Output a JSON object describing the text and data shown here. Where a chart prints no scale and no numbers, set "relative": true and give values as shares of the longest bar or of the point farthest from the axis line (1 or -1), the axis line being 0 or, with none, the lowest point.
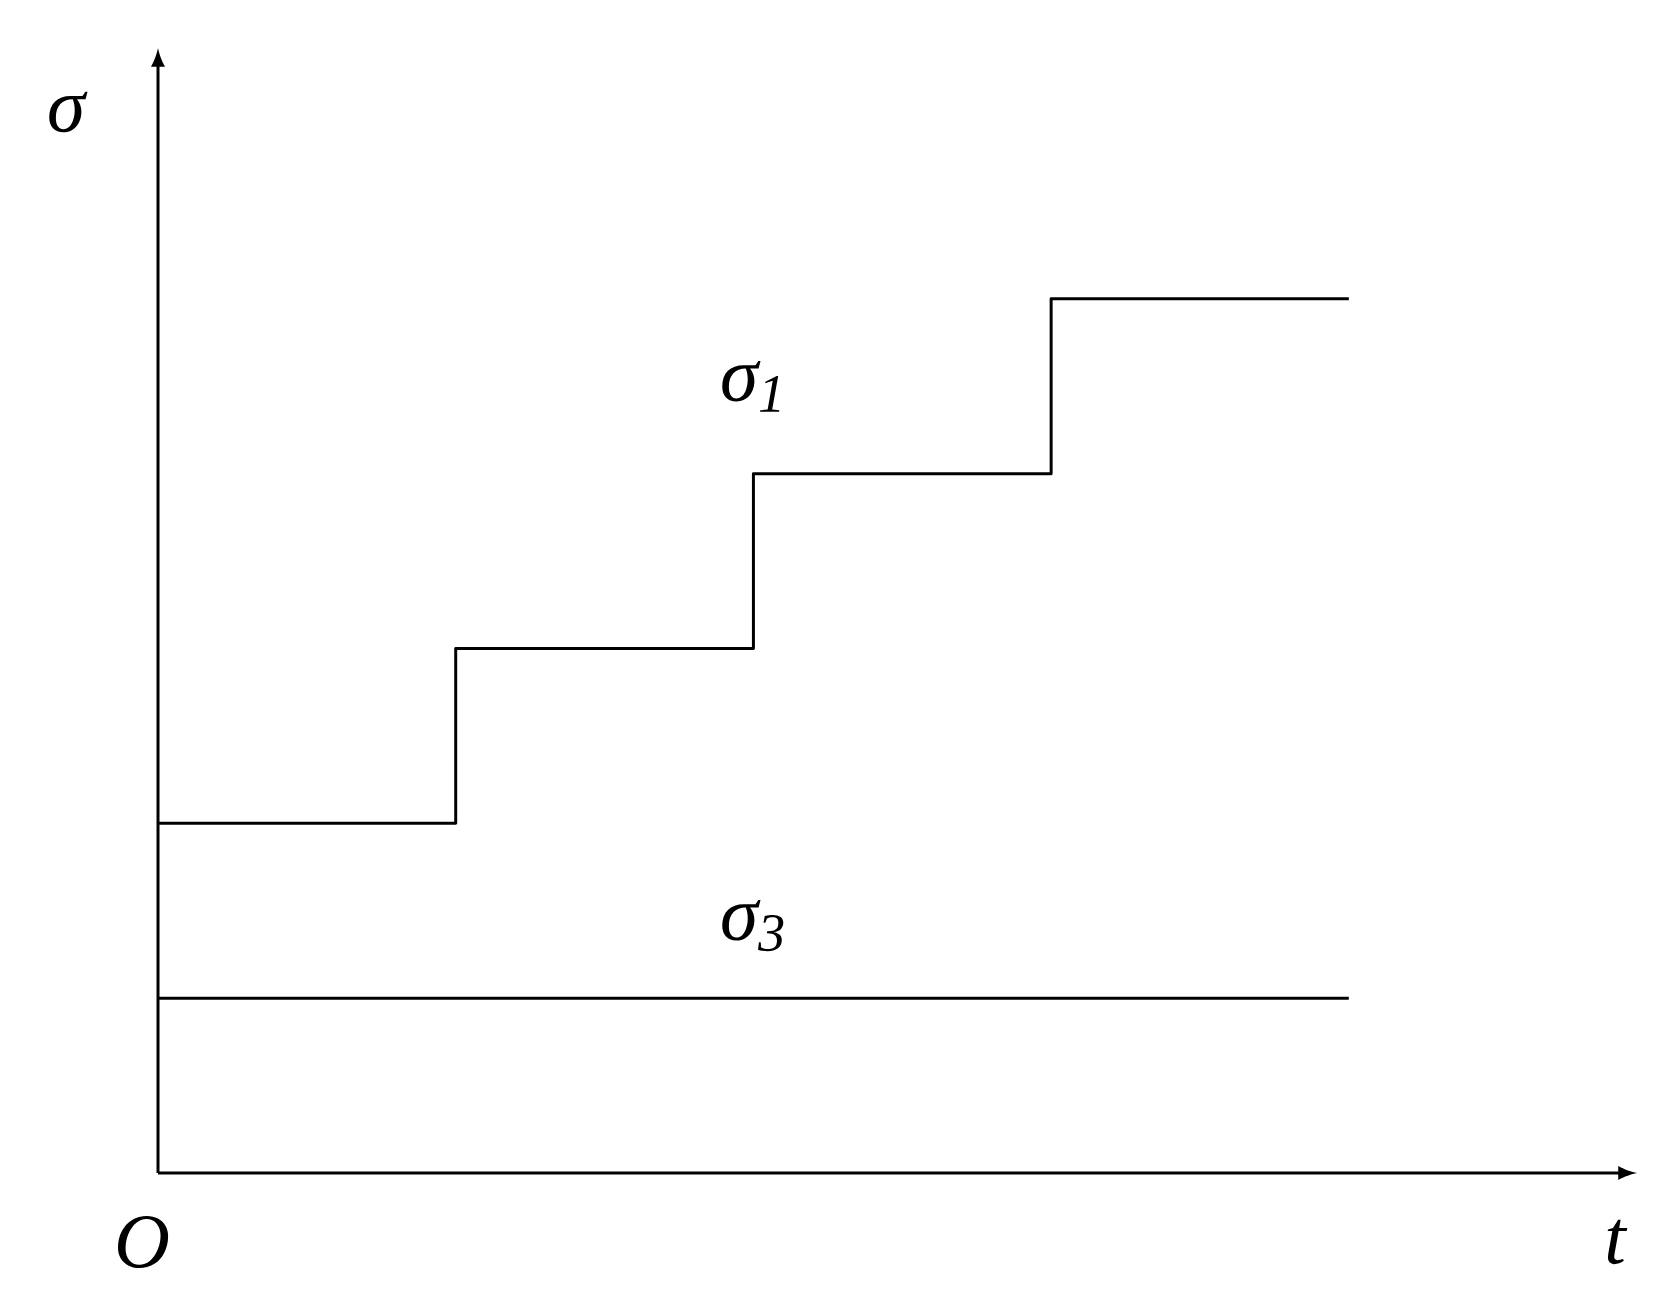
{
  "chart_data": {
    "type": "step",
    "relative": true,
    "xlabel": "t",
    "ylabel": "σ",
    "annotations": [
      "O"
    ],
    "categories": [
      null,
      null,
      null,
      null,
      null
    ],
    "series": [
      {
        "name": "σ$_{1}$",
        "color": "#000000",
        "values": [
          0.4,
          0.6,
          0.8,
          1.0,
          1.0
        ]
      },
      {
        "name": "σ$_{3}$",
        "color": "#000000",
        "values": [
          0.2,
          0.2,
          0.2,
          0.2,
          0.2
        ]
      }
    ]
  }
}
